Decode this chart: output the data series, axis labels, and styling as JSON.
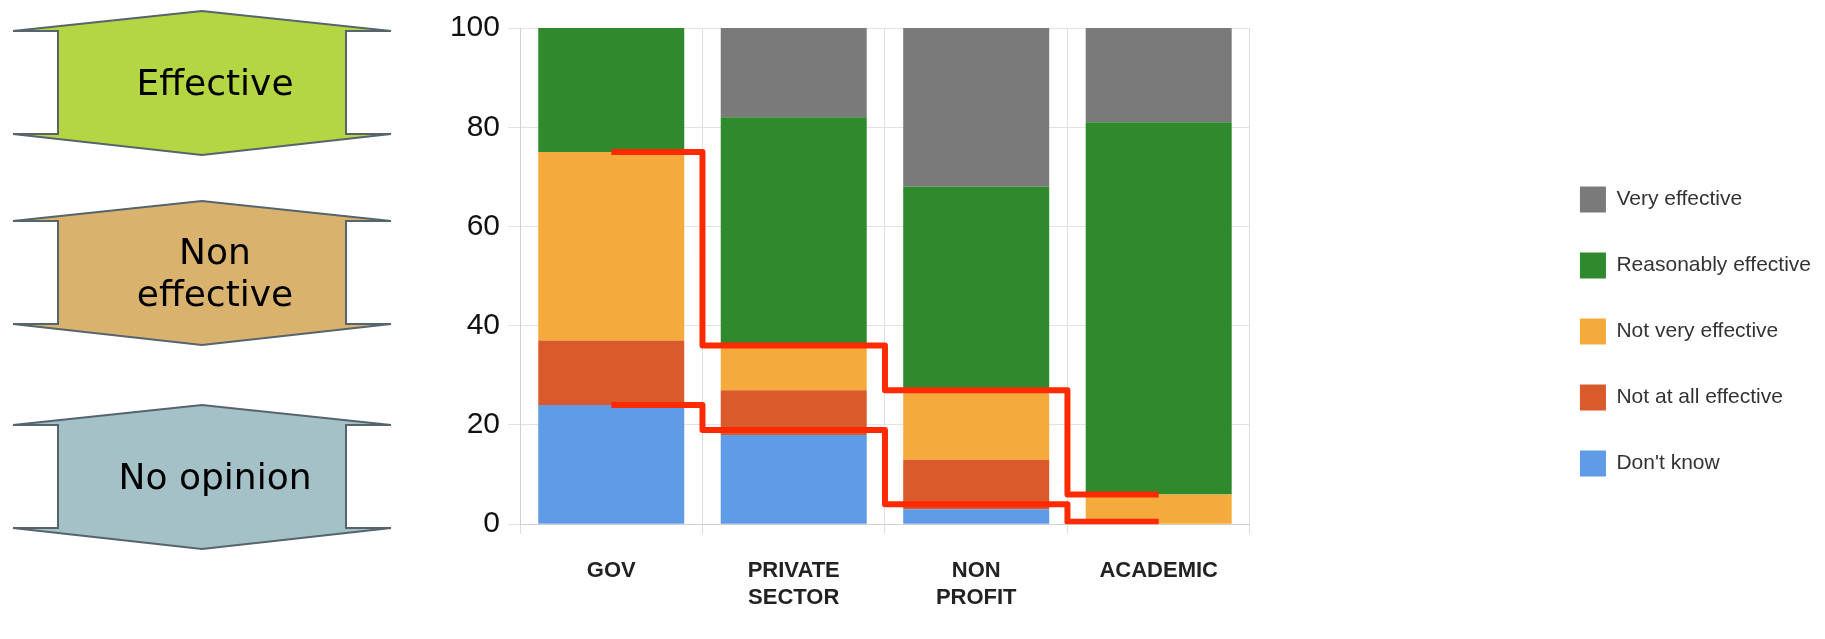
{
  "chart_data": {
    "type": "bar",
    "stacked": true,
    "categories": [
      "GOV",
      "PRIVATE SECTOR",
      "NON PROFIT",
      "ACADEMIC"
    ],
    "series": [
      {
        "name": "Don't know",
        "color": "#5f9be6",
        "values": [
          24,
          18,
          3,
          0
        ]
      },
      {
        "name": "Not at all effective",
        "color": "#d95a2b",
        "values": [
          13,
          9,
          10,
          0
        ]
      },
      {
        "name": "Not very effective",
        "color": "#f5ab3c",
        "values": [
          38,
          9,
          14,
          6
        ]
      },
      {
        "name": "Reasonably effective",
        "color": "#2e8a2c",
        "values": [
          25,
          46,
          41,
          75
        ]
      },
      {
        "name": "Very effective",
        "color": "#7a7a7a",
        "values": [
          0,
          18,
          32,
          19
        ]
      },
      {
        "type": "step",
        "color": "#ff2a00",
        "values": [
          75,
          36,
          27,
          6
        ]
      },
      {
        "type": "step",
        "color": "#ff2a00",
        "values": [
          24,
          19,
          4,
          0.5
        ]
      }
    ],
    "ylim": [
      0,
      100
    ],
    "yticks": [
      0,
      20,
      40,
      60,
      80,
      100
    ],
    "grid": true,
    "legend": "right",
    "annotations": [
      "Effective",
      "Non effective",
      "No opinion"
    ]
  }
}
